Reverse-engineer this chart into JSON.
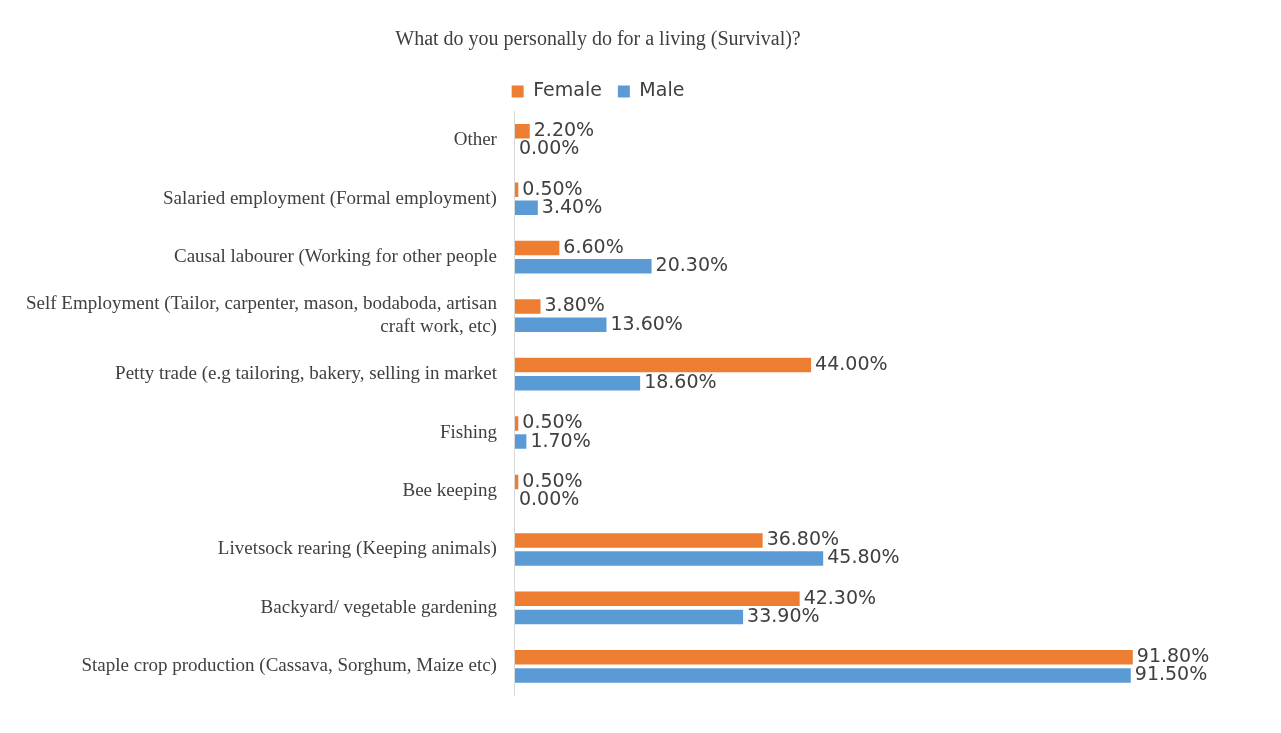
{
  "chart_data": {
    "type": "bar",
    "orientation": "horizontal",
    "title": "What do you personally do for a living (Survival)?",
    "categories": [
      "Other",
      "Salaried employment (Formal employment)",
      "Causal labourer (Working for other people",
      "Self Employment (Tailor, carpenter, mason, bodaboda, artisan craft work, etc)",
      "Petty trade (e.g tailoring, bakery, selling in market",
      "Fishing",
      "Bee keeping",
      "Livetsock rearing (Keeping animals)",
      "Backyard/ vegetable gardening",
      "Staple crop production (Cassava, Sorghum, Maize etc)"
    ],
    "series": [
      {
        "name": "Female",
        "color": "#ed7d31",
        "values": [
          2.2,
          0.5,
          6.6,
          3.8,
          44.0,
          0.5,
          0.5,
          36.8,
          42.3,
          91.8
        ],
        "value_labels": [
          "2.20%",
          "0.50%",
          "6.60%",
          "3.80%",
          "44.00%",
          "0.50%",
          "0.50%",
          "36.80%",
          "42.30%",
          "91.80%"
        ]
      },
      {
        "name": "Male",
        "color": "#5b9bd5",
        "values": [
          0.0,
          3.4,
          20.3,
          13.6,
          18.6,
          1.7,
          0.0,
          45.8,
          33.9,
          91.5
        ],
        "value_labels": [
          "0.00%",
          "3.40%",
          "20.30%",
          "13.60%",
          "18.60%",
          "1.70%",
          "0.00%",
          "45.80%",
          "33.90%",
          "91.50%"
        ]
      }
    ],
    "tick_labels": "y",
    "grid": false,
    "legend": "top"
  }
}
